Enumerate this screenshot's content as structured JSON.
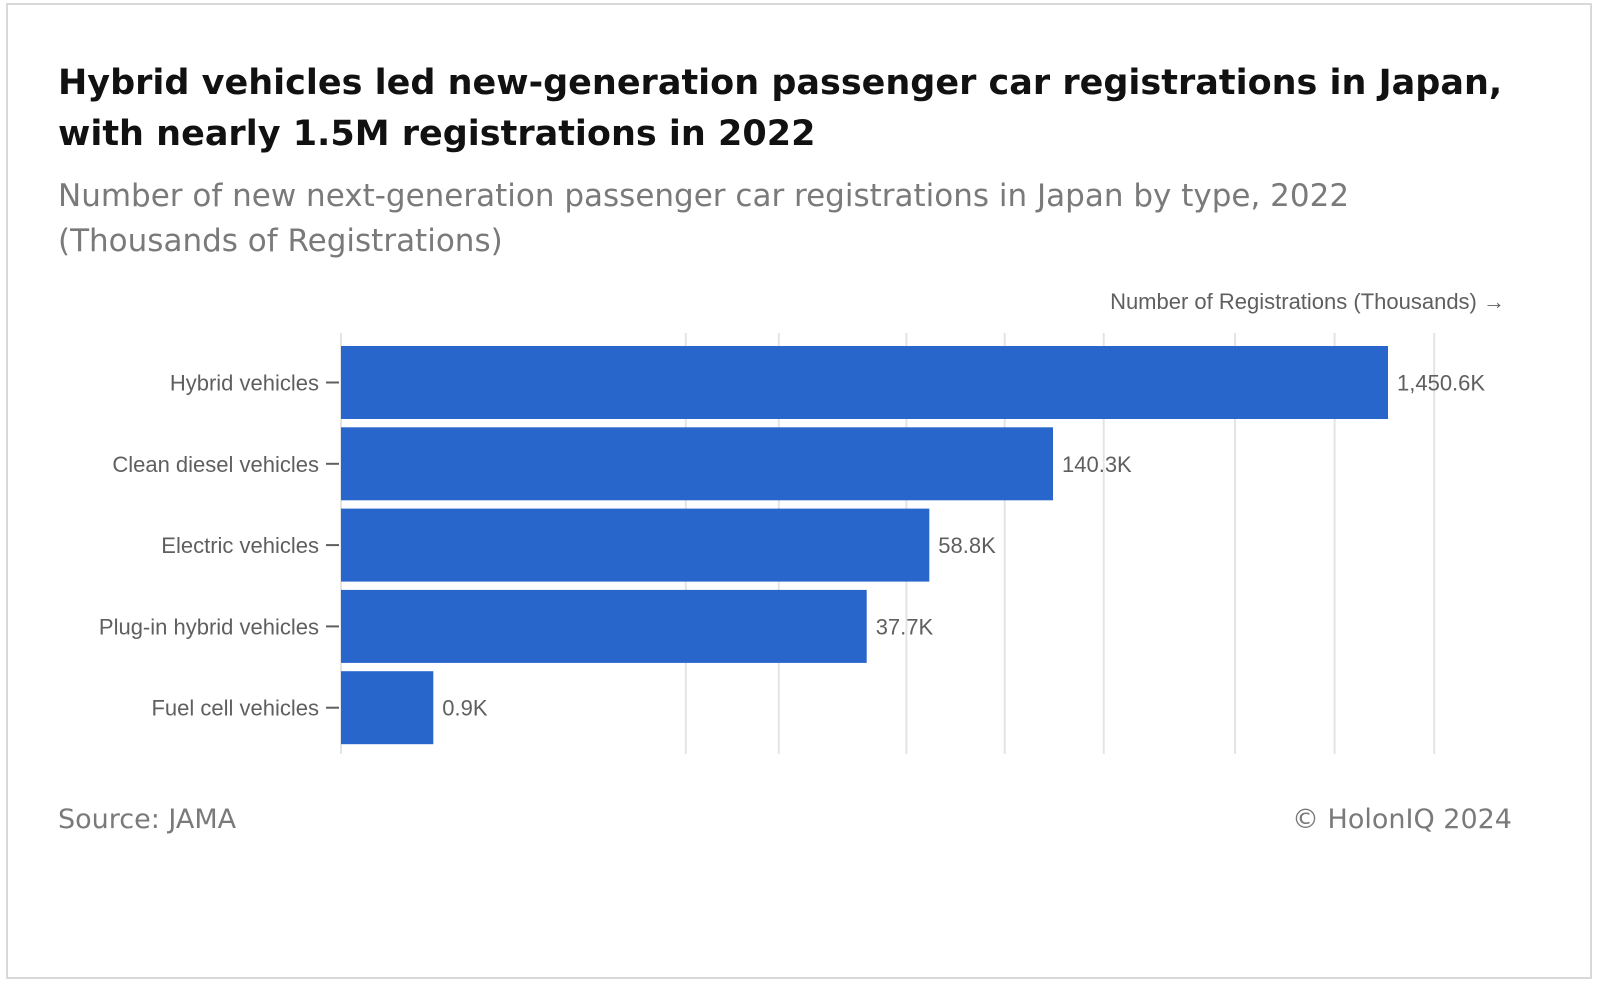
{
  "header": {
    "title": "Hybrid vehicles led new-generation passenger car registrations in Japan, with nearly 1.5M registrations in 2022",
    "subtitle": "Number of new next-generation passenger car registrations in Japan by type, 2022 (Thousands of Registrations)"
  },
  "footer": {
    "source": "Source: JAMA",
    "credit": "© HolonIQ 2024"
  },
  "colors": {
    "bar": "#2966cc",
    "grid": "#e4e4e4",
    "text_muted": "#5f5f5f"
  },
  "chart_data": {
    "type": "bar",
    "orientation": "horizontal",
    "x_axis_title": "Number of Registrations (Thousands) →",
    "categories": [
      "Hybrid vehicles",
      "Clean diesel vehicles",
      "Electric vehicles",
      "Plug-in hybrid vehicles",
      "Fuel cell vehicles"
    ],
    "values": [
      1450.6,
      140.3,
      58.8,
      37.7,
      0.9
    ],
    "value_labels": [
      "1,450.6K",
      "140.3K",
      "58.8K",
      "37.7K",
      "0.9K"
    ],
    "x_scale": "log",
    "grid": true,
    "tick_labels_shown": false
  }
}
